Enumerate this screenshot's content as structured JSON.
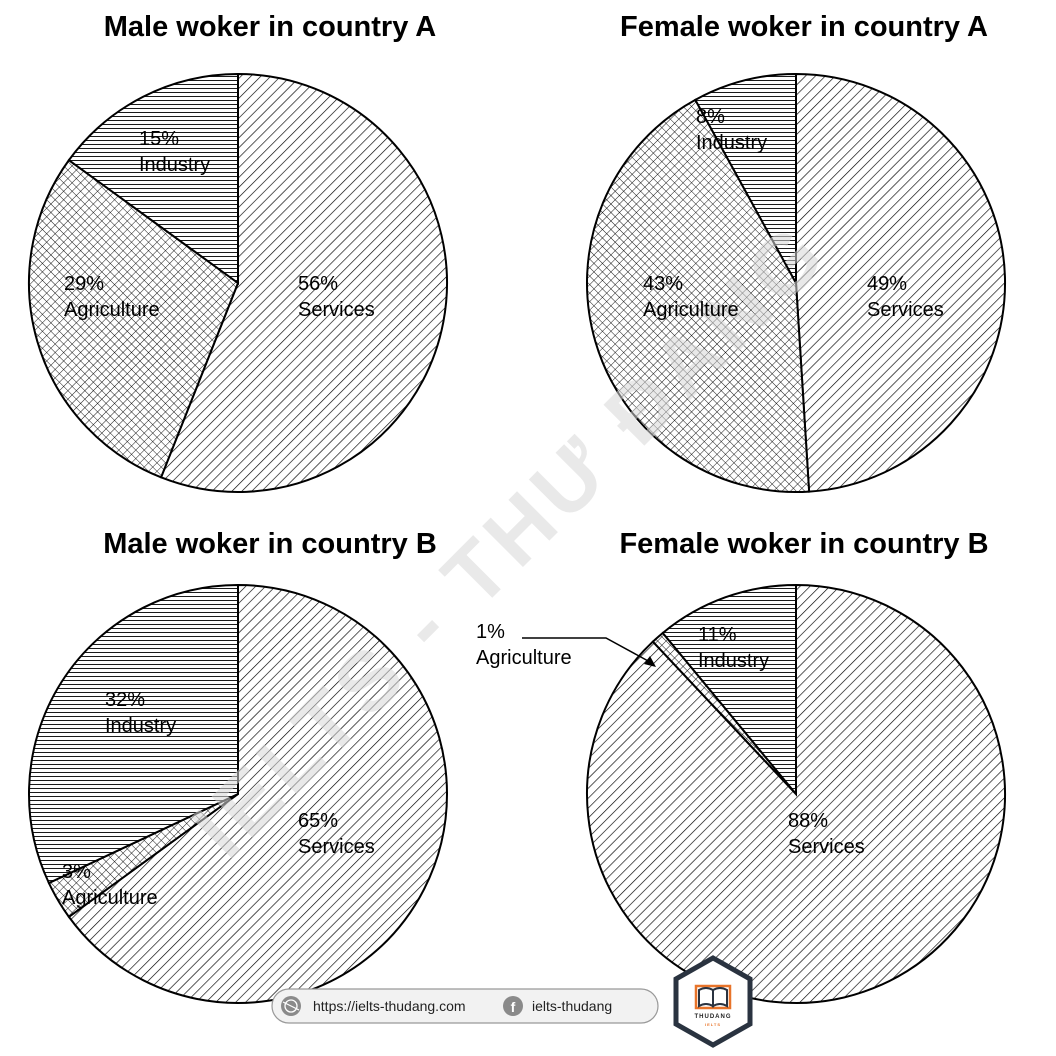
{
  "chart_data": [
    {
      "type": "pie",
      "title": "Male woker in country A",
      "slices": [
        {
          "label": "Services",
          "value": 56,
          "value_label": "56%",
          "pattern": "diagonal"
        },
        {
          "label": "Agriculture",
          "value": 29,
          "value_label": "29%",
          "pattern": "crosshatch"
        },
        {
          "label": "Industry",
          "value": 15,
          "value_label": "15%",
          "pattern": "horizontal"
        }
      ]
    },
    {
      "type": "pie",
      "title": "Female woker in country A",
      "slices": [
        {
          "label": "Services",
          "value": 49,
          "value_label": "49%",
          "pattern": "diagonal"
        },
        {
          "label": "Agriculture",
          "value": 43,
          "value_label": "43%",
          "pattern": "crosshatch"
        },
        {
          "label": "Industry",
          "value": 8,
          "value_label": "8%",
          "pattern": "horizontal"
        }
      ]
    },
    {
      "type": "pie",
      "title": "Male woker in country B",
      "slices": [
        {
          "label": "Services",
          "value": 65,
          "value_label": "65%",
          "pattern": "diagonal"
        },
        {
          "label": "Agriculture",
          "value": 3,
          "value_label": "3%",
          "pattern": "crosshatch"
        },
        {
          "label": "Industry",
          "value": 32,
          "value_label": "32%",
          "pattern": "horizontal"
        }
      ]
    },
    {
      "type": "pie",
      "title": "Female woker in country B",
      "slices": [
        {
          "label": "Services",
          "value": 88,
          "value_label": "88%",
          "pattern": "diagonal"
        },
        {
          "label": "Agriculture",
          "value": 1,
          "value_label": "1%",
          "pattern": "crosshatch"
        },
        {
          "label": "Industry",
          "value": 11,
          "value_label": "11%",
          "pattern": "horizontal"
        }
      ]
    }
  ],
  "watermark": "IELTS - THƯ ĐANG",
  "footer": {
    "website": "https://ielts-thudang.com",
    "facebook": "ielts-thudang",
    "website_icon": "dribbble-globe-icon",
    "facebook_icon": "facebook-icon"
  },
  "logo": {
    "text": "THUDANG",
    "subtext": "IELTS",
    "icon": "open-book-icon",
    "accent_color": "#e8742a"
  }
}
